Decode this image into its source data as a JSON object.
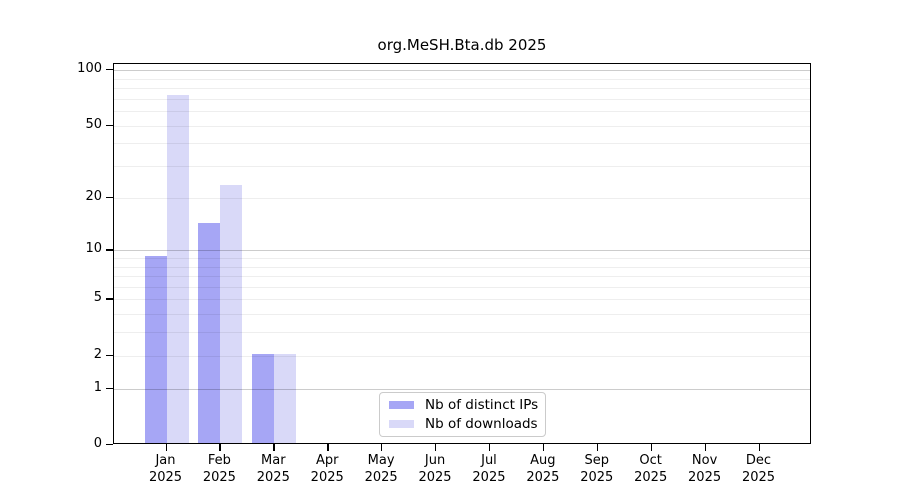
{
  "chart_data": {
    "type": "bar",
    "title": "org.MeSH.Bta.db 2025",
    "year_label": "2025",
    "categories": [
      "Jan",
      "Feb",
      "Mar",
      "Apr",
      "May",
      "Jun",
      "Jul",
      "Aug",
      "Sep",
      "Oct",
      "Nov",
      "Dec"
    ],
    "series": [
      {
        "name": "Nb of distinct IPs",
        "color": "#a6a6f5",
        "values": [
          9,
          14,
          2,
          0,
          0,
          0,
          0,
          0,
          0,
          0,
          0,
          0
        ]
      },
      {
        "name": "Nb of downloads",
        "color": "#d9d9f8",
        "values": [
          72,
          23,
          2,
          0,
          0,
          0,
          0,
          0,
          0,
          0,
          0,
          0
        ]
      }
    ],
    "xlabel": "",
    "ylabel": "",
    "yscale": "log1p",
    "yticks": [
      0,
      1,
      2,
      5,
      10,
      20,
      50,
      100
    ],
    "ylim": [
      0,
      108
    ],
    "grid": {
      "on": true,
      "major_values": [
        1,
        10,
        100
      ],
      "minor_values": [
        2,
        3,
        4,
        5,
        6,
        7,
        8,
        9,
        20,
        30,
        40,
        50,
        60,
        70,
        80,
        90
      ]
    },
    "legend_position": "bottom-center",
    "axis_color": "#000000",
    "background_color": "#ffffff"
  }
}
